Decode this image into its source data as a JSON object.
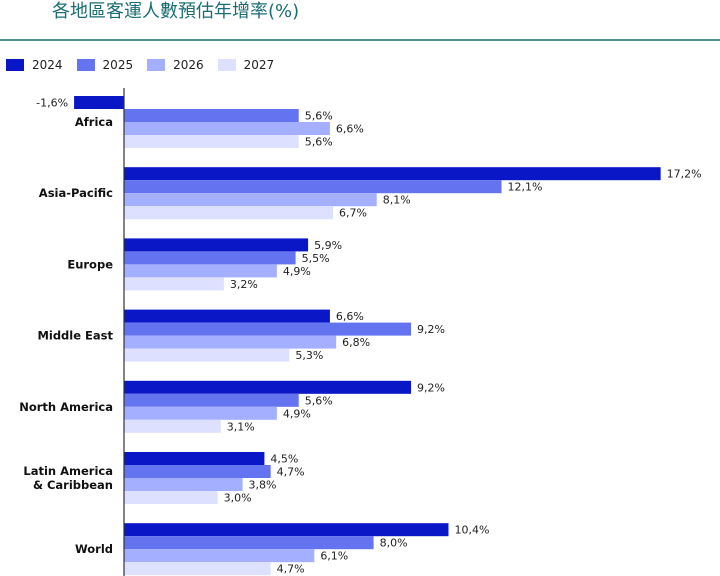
{
  "title": "各地區客運人數預估年增率(%)",
  "colors": [
    "#0a17c7",
    "#6473ef",
    "#a5afff",
    "#dde0ff"
  ],
  "chart_data": {
    "type": "bar",
    "orientation": "horizontal",
    "categories": [
      "Africa",
      "Asia-Pacific",
      "Europe",
      "Middle East",
      "North America",
      "Latin America & Caribbean",
      "World"
    ],
    "category_lines": [
      [
        "Africa"
      ],
      [
        "Asia-Pacific"
      ],
      [
        "Europe"
      ],
      [
        "Middle East"
      ],
      [
        "North America"
      ],
      [
        "Latin America",
        "& Caribbean"
      ],
      [
        "World"
      ]
    ],
    "series": [
      {
        "name": "2024",
        "values": [
          -1.6,
          17.2,
          5.9,
          6.6,
          9.2,
          4.5,
          10.4
        ],
        "labels": [
          "-1,6%",
          "17,2%",
          "5,9%",
          "6,6%",
          "9,2%",
          "4,5%",
          "10,4%"
        ]
      },
      {
        "name": "2025",
        "values": [
          5.6,
          12.1,
          5.5,
          9.2,
          5.6,
          4.7,
          8.0
        ],
        "labels": [
          "5,6%",
          "12,1%",
          "5,5%",
          "9,2%",
          "5,6%",
          "4,7%",
          "8,0%"
        ]
      },
      {
        "name": "2026",
        "values": [
          6.6,
          8.1,
          4.9,
          6.8,
          4.9,
          3.8,
          6.1
        ],
        "labels": [
          "6,6%",
          "8,1%",
          "4,9%",
          "6,8%",
          "4,9%",
          "3,8%",
          "6,1%"
        ]
      },
      {
        "name": "2027",
        "values": [
          5.6,
          6.7,
          3.2,
          5.3,
          3.1,
          3.0,
          4.7
        ],
        "labels": [
          "5,6%",
          "6,7%",
          "3,2%",
          "5,3%",
          "3,1%",
          "3,0%",
          "4,7%"
        ]
      }
    ],
    "legend_position": "top-left",
    "grid": false
  }
}
